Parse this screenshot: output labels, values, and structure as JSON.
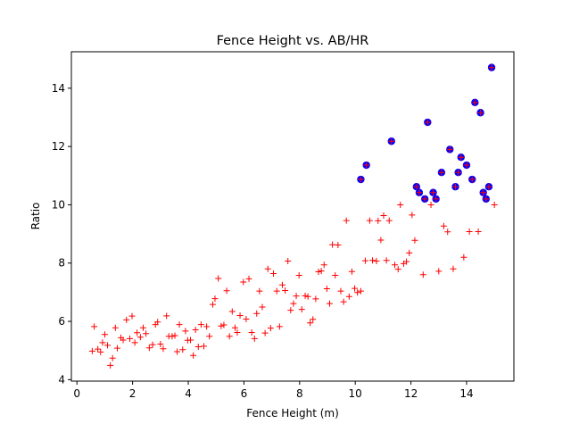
{
  "chart_data": {
    "type": "scatter",
    "title": "Fence Height vs. AB/HR",
    "xlabel": "Fence Height (m)",
    "ylabel": "Ratio",
    "xlim": [
      -0.2,
      15.7
    ],
    "ylim": [
      3.95,
      15.25
    ],
    "xticks": [
      0,
      2,
      4,
      6,
      8,
      10,
      12,
      14
    ],
    "yticks": [
      4,
      6,
      8,
      10,
      12,
      14
    ],
    "grid": false,
    "colors": {
      "plus_marker": "#ff0000",
      "circle_marker": "#0000ff"
    },
    "series": [
      {
        "marker": "plus",
        "points": [
          [
            0.55,
            4.98
          ],
          [
            0.62,
            5.82
          ],
          [
            0.75,
            5.05
          ],
          [
            0.85,
            4.95
          ],
          [
            0.92,
            5.27
          ],
          [
            1.0,
            5.55
          ],
          [
            1.1,
            5.18
          ],
          [
            1.2,
            4.49
          ],
          [
            1.28,
            4.74
          ],
          [
            1.38,
            5.78
          ],
          [
            1.45,
            5.08
          ],
          [
            1.58,
            5.44
          ],
          [
            1.66,
            5.36
          ],
          [
            1.78,
            6.05
          ],
          [
            1.9,
            5.41
          ],
          [
            1.98,
            6.18
          ],
          [
            2.08,
            5.27
          ],
          [
            2.16,
            5.61
          ],
          [
            2.28,
            5.46
          ],
          [
            2.38,
            5.78
          ],
          [
            2.48,
            5.58
          ],
          [
            2.6,
            5.09
          ],
          [
            2.72,
            5.2
          ],
          [
            2.82,
            5.89
          ],
          [
            2.9,
            5.98
          ],
          [
            3.0,
            5.22
          ],
          [
            3.1,
            5.06
          ],
          [
            3.22,
            6.19
          ],
          [
            3.3,
            5.49
          ],
          [
            3.42,
            5.49
          ],
          [
            3.52,
            5.51
          ],
          [
            3.6,
            4.96
          ],
          [
            3.68,
            5.89
          ],
          [
            3.8,
            5.03
          ],
          [
            3.9,
            5.67
          ],
          [
            3.98,
            5.35
          ],
          [
            4.08,
            5.36
          ],
          [
            4.18,
            4.83
          ],
          [
            4.26,
            5.71
          ],
          [
            4.36,
            5.13
          ],
          [
            4.46,
            5.89
          ],
          [
            4.56,
            5.15
          ],
          [
            4.66,
            5.82
          ],
          [
            4.76,
            5.49
          ],
          [
            4.88,
            6.58
          ],
          [
            4.96,
            6.78
          ],
          [
            5.08,
            7.47
          ],
          [
            5.18,
            5.84
          ],
          [
            5.28,
            5.88
          ],
          [
            5.38,
            7.05
          ],
          [
            5.48,
            5.49
          ],
          [
            5.58,
            6.34
          ],
          [
            5.68,
            5.78
          ],
          [
            5.76,
            5.62
          ],
          [
            5.86,
            6.2
          ],
          [
            5.98,
            7.35
          ],
          [
            6.08,
            6.08
          ],
          [
            6.18,
            7.46
          ],
          [
            6.28,
            5.62
          ],
          [
            6.38,
            5.41
          ],
          [
            6.46,
            6.27
          ],
          [
            6.56,
            7.04
          ],
          [
            6.66,
            6.49
          ],
          [
            6.76,
            5.6
          ],
          [
            6.86,
            7.8
          ],
          [
            6.96,
            5.77
          ],
          [
            7.06,
            7.64
          ],
          [
            7.18,
            7.04
          ],
          [
            7.28,
            5.82
          ],
          [
            7.38,
            7.25
          ],
          [
            7.48,
            7.06
          ],
          [
            7.58,
            8.07
          ],
          [
            7.68,
            6.38
          ],
          [
            7.78,
            6.61
          ],
          [
            7.88,
            6.87
          ],
          [
            7.98,
            7.58
          ],
          [
            8.08,
            6.41
          ],
          [
            8.2,
            6.88
          ],
          [
            8.3,
            6.85
          ],
          [
            8.38,
            5.95
          ],
          [
            8.48,
            6.07
          ],
          [
            8.58,
            6.77
          ],
          [
            8.68,
            7.7
          ],
          [
            8.78,
            7.73
          ],
          [
            8.88,
            7.94
          ],
          [
            8.98,
            7.12
          ],
          [
            9.08,
            6.61
          ],
          [
            9.18,
            8.63
          ],
          [
            9.28,
            7.58
          ],
          [
            9.38,
            8.62
          ],
          [
            9.48,
            7.04
          ],
          [
            9.58,
            6.67
          ],
          [
            9.68,
            9.46
          ],
          [
            9.78,
            6.85
          ],
          [
            9.88,
            7.71
          ],
          [
            9.98,
            7.13
          ],
          [
            10.08,
            6.99
          ],
          [
            10.2,
            7.04
          ],
          [
            10.36,
            8.08
          ],
          [
            10.52,
            9.46
          ],
          [
            10.62,
            8.09
          ],
          [
            10.76,
            8.07
          ],
          [
            10.82,
            9.45
          ],
          [
            10.92,
            8.79
          ],
          [
            11.02,
            9.63
          ],
          [
            11.12,
            8.09
          ],
          [
            11.22,
            9.46
          ],
          [
            11.42,
            7.94
          ],
          [
            11.54,
            7.79
          ],
          [
            11.62,
            10.0
          ],
          [
            11.74,
            7.98
          ],
          [
            11.84,
            8.05
          ],
          [
            11.94,
            8.35
          ],
          [
            12.04,
            9.65
          ],
          [
            12.14,
            8.78
          ],
          [
            12.44,
            7.6
          ],
          [
            12.72,
            10.0
          ],
          [
            13.0,
            7.72
          ],
          [
            13.18,
            9.27
          ],
          [
            13.32,
            9.07
          ],
          [
            13.52,
            7.8
          ],
          [
            13.9,
            8.2
          ],
          [
            14.1,
            9.08
          ],
          [
            14.42,
            9.08
          ],
          [
            15.0,
            10.0
          ]
        ]
      },
      {
        "marker": "circle",
        "points": [
          [
            10.2,
            10.87
          ],
          [
            10.4,
            11.36
          ],
          [
            11.3,
            12.18
          ],
          [
            12.2,
            10.62
          ],
          [
            12.3,
            10.42
          ],
          [
            12.5,
            10.2
          ],
          [
            12.6,
            12.83
          ],
          [
            12.8,
            10.42
          ],
          [
            12.9,
            10.2
          ],
          [
            13.1,
            11.11
          ],
          [
            13.4,
            11.9
          ],
          [
            13.6,
            10.62
          ],
          [
            13.7,
            11.11
          ],
          [
            13.8,
            11.63
          ],
          [
            14.0,
            11.36
          ],
          [
            14.2,
            10.87
          ],
          [
            14.3,
            13.51
          ],
          [
            14.5,
            13.16
          ],
          [
            14.6,
            10.42
          ],
          [
            14.7,
            10.2
          ],
          [
            14.8,
            10.62
          ],
          [
            14.9,
            14.71
          ]
        ]
      }
    ]
  }
}
